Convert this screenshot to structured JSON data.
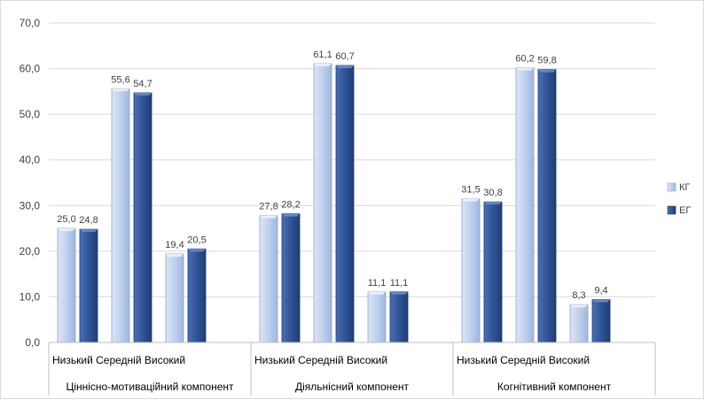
{
  "chart_data": {
    "type": "bar",
    "title": "",
    "xlabel": "",
    "ylabel": "",
    "ylim": [
      0,
      70
    ],
    "yticks": [
      0,
      10,
      20,
      30,
      40,
      50,
      60,
      70
    ],
    "ytick_labels": [
      "0,0",
      "10,0",
      "20,0",
      "30,0",
      "40,0",
      "50,0",
      "60,0",
      "70,0"
    ],
    "grid": true,
    "legend_position": "right",
    "groups": [
      {
        "label": "Ціннісно-мотиваційний компонент",
        "categories": [
          "Низький",
          "Середній",
          "Високий"
        ]
      },
      {
        "label": "Діяльнісний компонент",
        "categories": [
          "Низький",
          "Середній",
          "Високий"
        ]
      },
      {
        "label": "Когнітивний компонент",
        "categories": [
          "Низький",
          "Середній",
          "Високий"
        ]
      }
    ],
    "series": [
      {
        "name": "КГ",
        "color": "#b4c7e7",
        "values": [
          25.0,
          55.6,
          19.4,
          27.8,
          61.1,
          11.1,
          31.5,
          60.2,
          8.3
        ],
        "labels": [
          "25,0",
          "55,6",
          "19,4",
          "27,8",
          "61,1",
          "11,1",
          "31,5",
          "60,2",
          "8,3"
        ]
      },
      {
        "name": "ЕГ",
        "color": "#2f5597",
        "values": [
          24.8,
          54.7,
          20.5,
          28.2,
          60.7,
          11.1,
          30.8,
          59.8,
          9.4
        ],
        "labels": [
          "24,8",
          "54,7",
          "20,5",
          "28,2",
          "60,7",
          "11,1",
          "30,8",
          "59,8",
          "9,4"
        ]
      }
    ]
  }
}
